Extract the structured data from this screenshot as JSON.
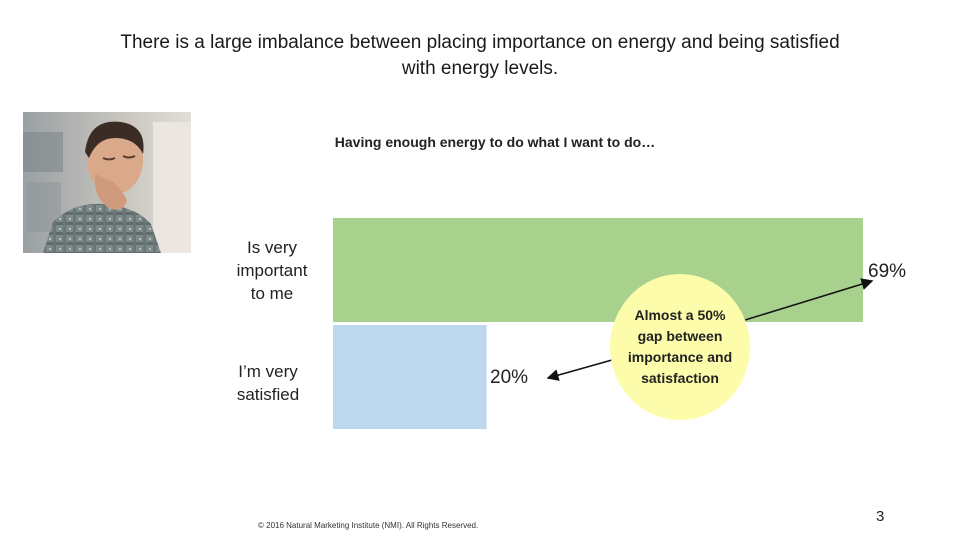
{
  "slide": {
    "title_line1": "There is a large imbalance between placing importance on energy and being satisfied",
    "title_line2": "with energy levels.",
    "photo_icon": "tired-man-photo",
    "footer": "© 2016 Natural Marketing Institute (NMI). All Rights Reserved.",
    "page_number": "3"
  },
  "callout": {
    "text": "Almost a 50% gap between importance and satisfaction",
    "color": "#fdfcaa"
  },
  "chart_data": {
    "type": "bar",
    "orientation": "horizontal",
    "title": "Having enough energy to do what I want to do…",
    "categories": [
      {
        "line1": "Is very",
        "line2": "important",
        "line3": "to me"
      },
      {
        "line1": "I’m very",
        "line2": "satisfied",
        "line3": ""
      }
    ],
    "values": [
      69,
      20
    ],
    "value_labels": [
      "69%",
      "20%"
    ],
    "colors": [
      "#a9d18e",
      "#bdd7ee"
    ],
    "xlim": [
      0,
      69
    ],
    "grid": false,
    "legend": "none"
  }
}
